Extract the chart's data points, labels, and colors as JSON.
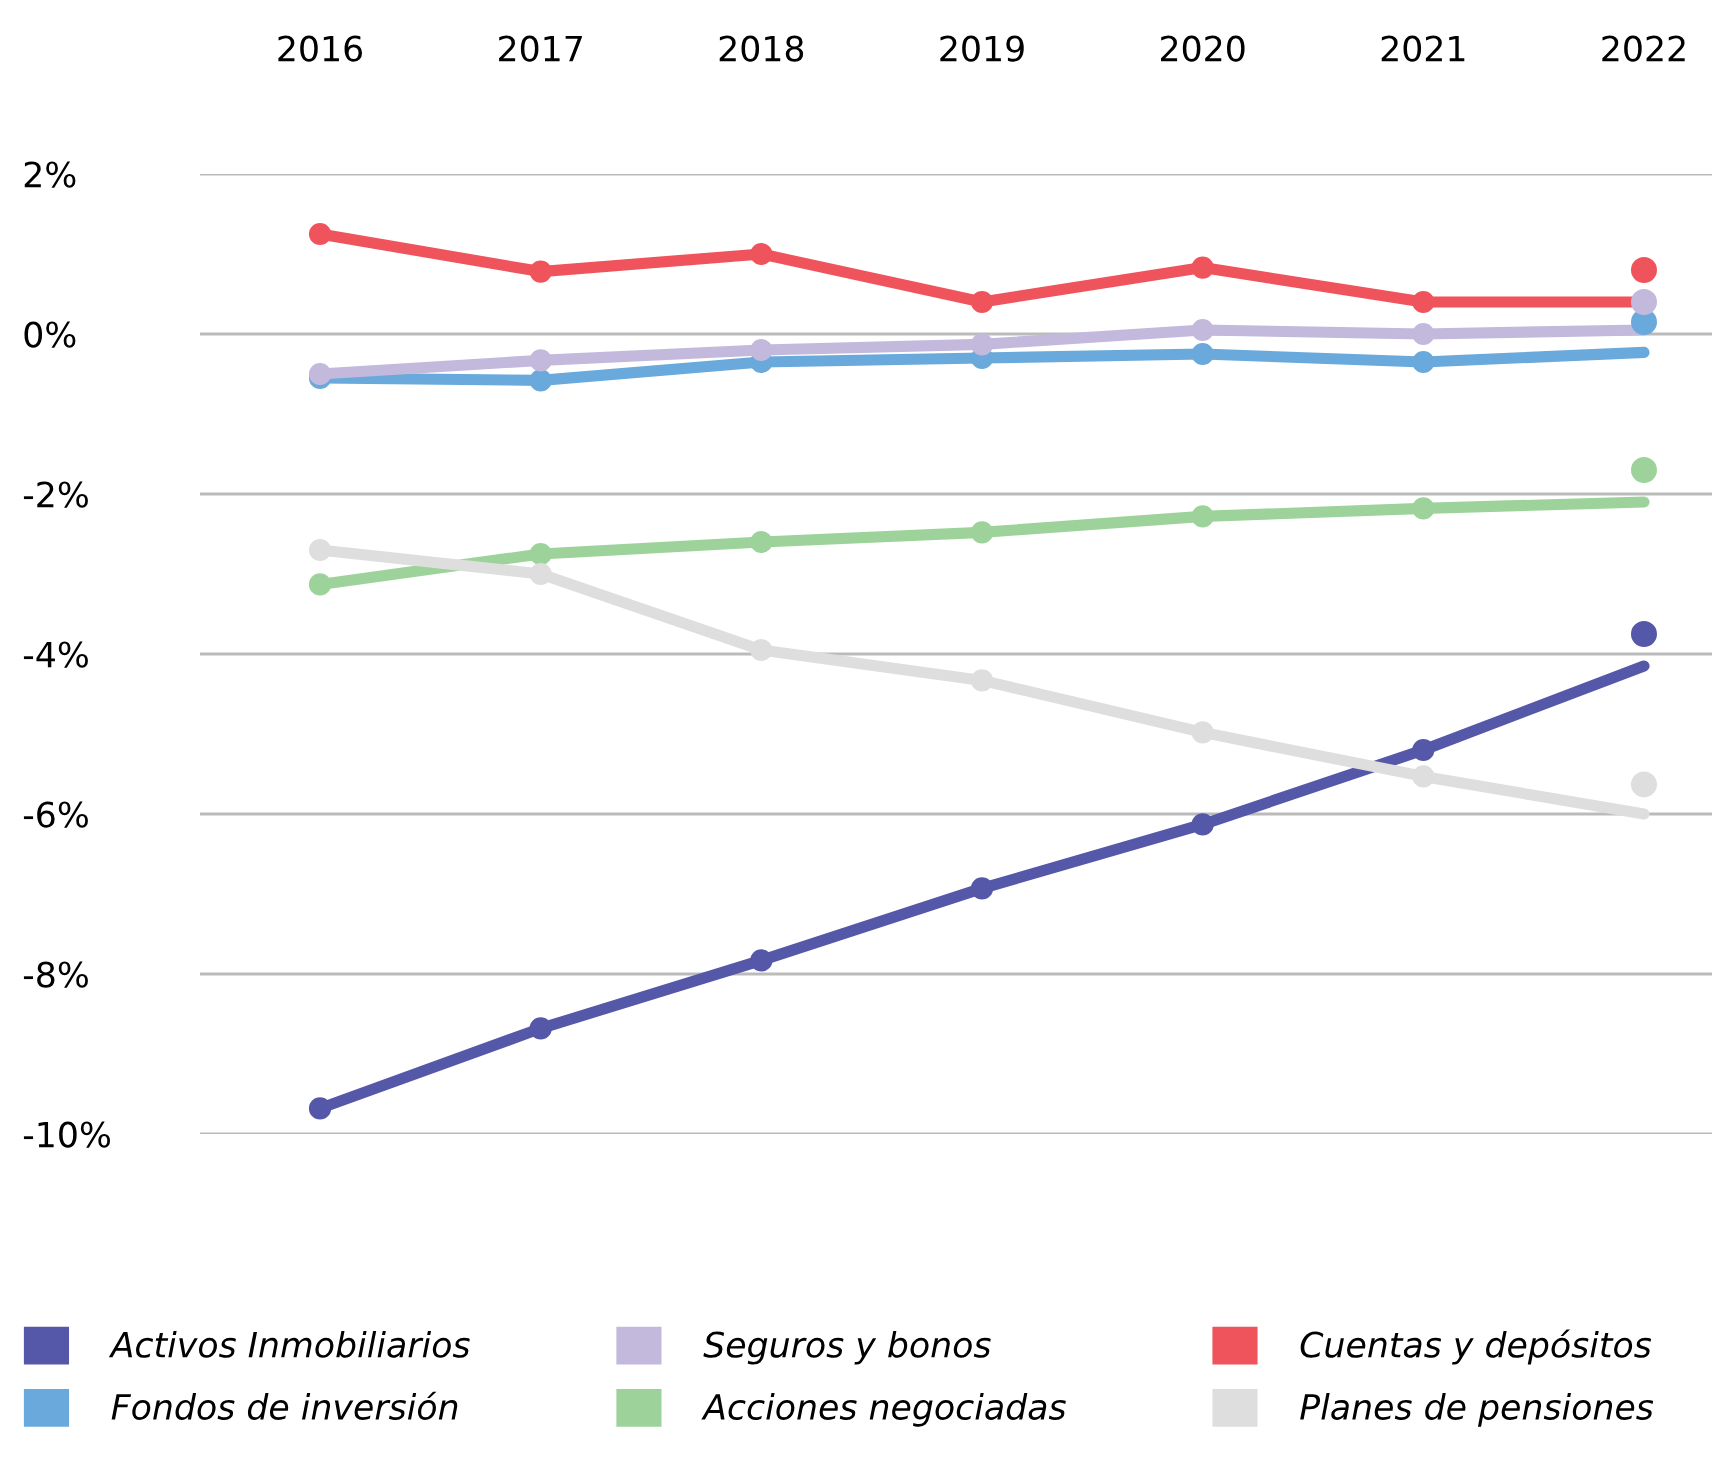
{
  "chart_data": {
    "type": "line",
    "categories": [
      "2016",
      "2017",
      "2018",
      "2019",
      "2020",
      "2021",
      "2022"
    ],
    "series": [
      {
        "name": "Activos Inmobiliarios",
        "color": "#5558a8",
        "values": [
          -9.68,
          -8.68,
          -7.83,
          -6.93,
          -6.13,
          -5.2,
          -4.15
        ]
      },
      {
        "name": "Fondos de inversión",
        "color": "#6aa9db",
        "values": [
          -0.55,
          -0.58,
          -0.35,
          -0.3,
          -0.25,
          -0.35,
          -0.23
        ]
      },
      {
        "name": "Seguros y bonos",
        "color": "#c2b9dc",
        "values": [
          -0.5,
          -0.33,
          -0.2,
          -0.13,
          0.05,
          0,
          0.05
        ]
      },
      {
        "name": "Acciones negociadas",
        "color": "#9dd39b",
        "values": [
          -3.13,
          -2.75,
          -2.6,
          -2.48,
          -2.28,
          -2.18,
          -2.1
        ]
      },
      {
        "name": "Cuentas y depósitos",
        "color": "#ef535c",
        "values": [
          1.25,
          0.78,
          1.0,
          0.4,
          0.83,
          0.4,
          0.4
        ]
      },
      {
        "name": "Planes de pensiones",
        "color": "#dedede",
        "values": [
          -2.7,
          -3.0,
          -3.95,
          -4.33,
          -4.98,
          -5.53,
          -6.0
        ]
      },
      {
        "type": "scatter",
        "color": "#5558a8",
        "values": [
          null,
          null,
          null,
          null,
          null,
          null,
          -3.75
        ]
      },
      {
        "type": "scatter",
        "color": "#6aa9db",
        "values": [
          null,
          null,
          null,
          null,
          null,
          null,
          0.15
        ]
      },
      {
        "type": "scatter",
        "color": "#c2b9dc",
        "values": [
          null,
          null,
          null,
          null,
          null,
          null,
          0.4
        ]
      },
      {
        "type": "scatter",
        "color": "#9dd39b",
        "values": [
          null,
          null,
          null,
          null,
          null,
          null,
          -1.7
        ]
      },
      {
        "type": "scatter",
        "color": "#ef535c",
        "values": [
          null,
          null,
          null,
          null,
          null,
          null,
          0.8
        ]
      },
      {
        "type": "scatter",
        "color": "#dedede",
        "values": [
          null,
          null,
          null,
          null,
          null,
          null,
          -5.63
        ]
      }
    ],
    "ylim": [
      -10,
      2
    ],
    "yticks": [
      {
        "value": 2,
        "label": "2%"
      },
      {
        "value": 0,
        "label": "0%"
      },
      {
        "value": -2,
        "label": "-2%"
      },
      {
        "value": -4,
        "label": "-4%"
      },
      {
        "value": -6,
        "label": "-6%"
      },
      {
        "value": -8,
        "label": "-8%"
      },
      {
        "value": -10,
        "label": "-10%"
      }
    ],
    "grid": "y",
    "legend": "bottom",
    "marker": "circle",
    "line_style": "solid"
  }
}
